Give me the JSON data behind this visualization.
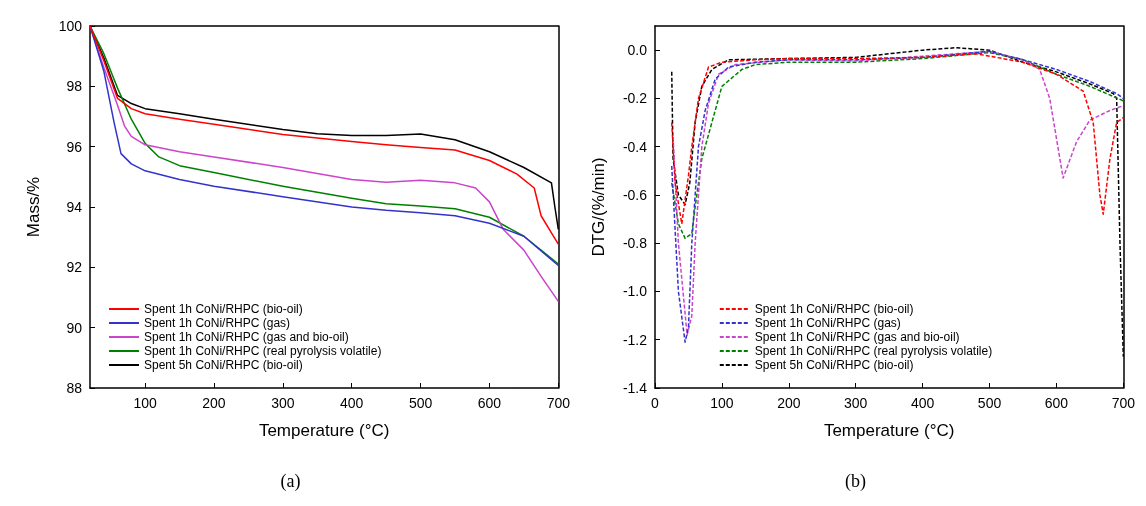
{
  "chart_data": [
    {
      "type": "line",
      "xlabel": "Temperature (°C)",
      "ylabel": "Mass/%",
      "xlim": [
        20,
        700
      ],
      "xticks": [
        100,
        200,
        300,
        400,
        500,
        600,
        700
      ],
      "ylim": [
        88,
        100
      ],
      "yticks": [
        88,
        90,
        92,
        94,
        96,
        98,
        100
      ],
      "grid": false,
      "legend": "bottom left",
      "marker": "none",
      "line_style": "solid",
      "annotations": [
        "(a)"
      ],
      "series": [
        {
          "name": "Spent 1h CoNi/RHPC (bio-oil)",
          "color": "#ff0000",
          "x": [
            20,
            40,
            60,
            80,
            100,
            150,
            200,
            300,
            400,
            450,
            500,
            550,
            600,
            640,
            665,
            675,
            690,
            700
          ],
          "values": [
            100,
            98.86,
            97.6,
            97.26,
            97.09,
            96.91,
            96.74,
            96.4,
            96.17,
            96.06,
            95.97,
            95.89,
            95.54,
            95.09,
            94.63,
            93.71,
            93.14,
            92.77
          ]
        },
        {
          "name": "Spent 1h CoNi/RHPC (gas)",
          "color": "#3333cc",
          "x": [
            20,
            40,
            55,
            65,
            80,
            100,
            150,
            200,
            300,
            400,
            450,
            500,
            550,
            600,
            650,
            700
          ],
          "values": [
            100,
            98.51,
            96.8,
            95.77,
            95.43,
            95.2,
            94.91,
            94.69,
            94.34,
            94.0,
            93.89,
            93.81,
            93.71,
            93.46,
            93.03,
            92.06
          ]
        },
        {
          "name": "Spent 1h CoNi/RHPC (gas and bio-oil)",
          "color": "#cc44cc",
          "x": [
            20,
            40,
            60,
            70,
            80,
            100,
            150,
            200,
            300,
            400,
            450,
            500,
            550,
            580,
            600,
            620,
            650,
            675,
            700
          ],
          "values": [
            100,
            98.63,
            97.37,
            96.69,
            96.34,
            96.06,
            95.83,
            95.66,
            95.31,
            94.91,
            94.82,
            94.89,
            94.8,
            94.63,
            94.17,
            93.26,
            92.57,
            91.7,
            90.87
          ]
        },
        {
          "name": "Spent 1h CoNi/RHPC (real pyrolysis volatile)",
          "color": "#008000",
          "x": [
            20,
            40,
            60,
            80,
            100,
            120,
            150,
            200,
            300,
            400,
            450,
            500,
            550,
            600,
            650,
            700
          ],
          "values": [
            100,
            99.09,
            97.94,
            96.91,
            96.11,
            95.66,
            95.37,
            95.14,
            94.69,
            94.29,
            94.11,
            94.03,
            93.94,
            93.66,
            93.03,
            92.11
          ]
        },
        {
          "name": "Spent 5h CoNi/RHPC (bio-oil)",
          "color": "#000000",
          "x": [
            20,
            40,
            60,
            80,
            100,
            150,
            200,
            300,
            350,
            400,
            450,
            500,
            550,
            600,
            650,
            690,
            695,
            700
          ],
          "values": [
            100,
            98.95,
            97.7,
            97.43,
            97.26,
            97.09,
            96.91,
            96.57,
            96.43,
            96.37,
            96.37,
            96.42,
            96.23,
            95.83,
            95.31,
            94.8,
            94.0,
            93.26
          ]
        }
      ]
    },
    {
      "type": "line",
      "xlabel": "Temperature (°C)",
      "ylabel": "DTG/(%/min)",
      "xlim": [
        0,
        700
      ],
      "xticks": [
        0,
        100,
        200,
        300,
        400,
        500,
        600,
        700
      ],
      "ylim": [
        -1.4,
        0.1
      ],
      "yticks": [
        -1.4,
        -1.2,
        {
          "value": -1,
          "label": "-1.0"
        },
        -0.8,
        -0.6,
        -0.4,
        -0.2,
        {
          "value": 0,
          "label": "0.0"
        }
      ],
      "grid": false,
      "legend": "bottom",
      "marker": "none",
      "line_style": "dashed",
      "annotations": [
        "(b)"
      ],
      "series": [
        {
          "name": "Spent 1h CoNi/RHPC (bio-oil)",
          "color": "#ff0000",
          "x": [
            25,
            30,
            40,
            50,
            55,
            65,
            80,
            100,
            150,
            200,
            300,
            400,
            480,
            550,
            600,
            640,
            655,
            665,
            670,
            680,
            690,
            700
          ],
          "values": [
            -0.3,
            -0.55,
            -0.72,
            -0.52,
            -0.4,
            -0.2,
            -0.07,
            -0.05,
            -0.04,
            -0.035,
            -0.035,
            -0.03,
            -0.015,
            -0.05,
            -0.1,
            -0.17,
            -0.3,
            -0.6,
            -0.68,
            -0.45,
            -0.3,
            -0.28
          ]
        },
        {
          "name": "Spent 1h CoNi/RHPC (gas)",
          "color": "#3333cc",
          "x": [
            25,
            35,
            45,
            50,
            55,
            65,
            75,
            90,
            110,
            150,
            200,
            300,
            400,
            500,
            550,
            600,
            650,
            690,
            700
          ],
          "values": [
            -0.48,
            -1.0,
            -1.21,
            -1.15,
            -0.8,
            -0.4,
            -0.25,
            -0.12,
            -0.07,
            -0.05,
            -0.04,
            -0.04,
            -0.03,
            -0.005,
            -0.04,
            -0.08,
            -0.13,
            -0.18,
            -0.2
          ]
        },
        {
          "name": "Spent 1h CoNi/RHPC (gas and bio-oil)",
          "color": "#cc44cc",
          "x": [
            27,
            35,
            48,
            55,
            60,
            70,
            80,
            95,
            120,
            200,
            300,
            400,
            500,
            550,
            575,
            590,
            610,
            630,
            650,
            680,
            700
          ],
          "values": [
            -0.36,
            -0.8,
            -1.18,
            -1.1,
            -0.8,
            -0.4,
            -0.22,
            -0.1,
            -0.06,
            -0.04,
            -0.045,
            -0.025,
            -0.005,
            -0.04,
            -0.08,
            -0.2,
            -0.53,
            -0.38,
            -0.29,
            -0.25,
            -0.23
          ]
        },
        {
          "name": "Spent 1h CoNi/RHPC (real pyrolysis volatile)",
          "color": "#008000",
          "x": [
            25,
            35,
            45,
            55,
            60,
            70,
            85,
            100,
            130,
            150,
            200,
            300,
            400,
            480,
            500,
            550,
            600,
            650,
            700
          ],
          "values": [
            -0.55,
            -0.72,
            -0.78,
            -0.76,
            -0.65,
            -0.45,
            -0.3,
            -0.15,
            -0.08,
            -0.06,
            -0.05,
            -0.05,
            -0.035,
            -0.015,
            -0.01,
            -0.04,
            -0.1,
            -0.15,
            -0.21
          ]
        },
        {
          "name": "Spent 5h CoNi/RHPC (bio-oil)",
          "color": "#000000",
          "x": [
            25,
            27,
            35,
            45,
            52,
            60,
            70,
            85,
            110,
            200,
            300,
            400,
            450,
            500,
            550,
            600,
            650,
            685,
            690,
            695,
            700
          ],
          "values": [
            -0.09,
            -0.45,
            -0.6,
            -0.64,
            -0.55,
            -0.3,
            -0.15,
            -0.08,
            -0.04,
            -0.035,
            -0.03,
            0.0,
            0.01,
            0.0,
            -0.05,
            -0.09,
            -0.14,
            -0.18,
            -0.2,
            -0.8,
            -1.27
          ]
        }
      ]
    }
  ]
}
